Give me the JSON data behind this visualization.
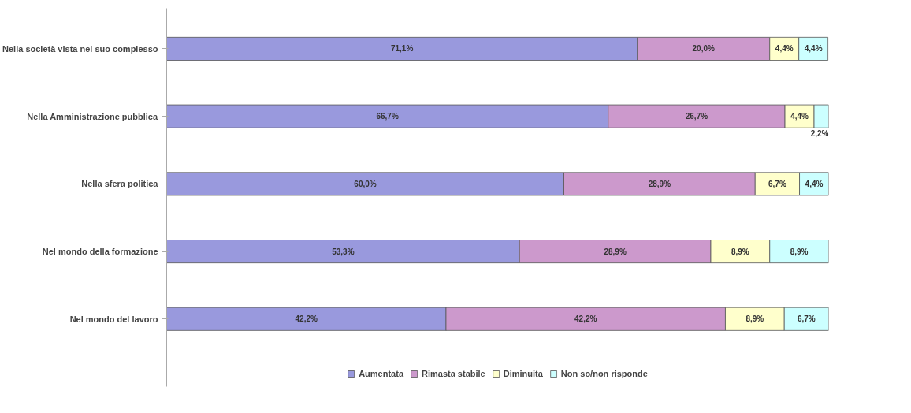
{
  "chart_data": {
    "type": "bar",
    "orientation": "horizontal",
    "stacked": true,
    "categories": [
      "Nella società vista nel suo complesso",
      "Nella Amministrazione pubblica",
      "Nella sfera politica",
      "Nel mondo della formazione",
      "Nel mondo del lavoro"
    ],
    "xlim": [
      0,
      100
    ],
    "tick_labels": "y",
    "grid": false,
    "legend": "bottom",
    "series": [
      {
        "name": "Aumentata",
        "color": "#9999dd",
        "values": [
          71.1,
          66.7,
          60.0,
          53.3,
          42.2
        ],
        "value_labels": [
          "71,1%",
          "66,7%",
          "60,0%",
          "53,3%",
          "42,2%"
        ]
      },
      {
        "name": "Rimasta stabile",
        "color": "#cc99cc",
        "values": [
          20.0,
          26.7,
          28.9,
          28.9,
          42.2
        ],
        "value_labels": [
          "20,0%",
          "26,7%",
          "28,9%",
          "28,9%",
          "42,2%"
        ]
      },
      {
        "name": "Diminuita",
        "color": "#ffffcc",
        "values": [
          4.4,
          4.4,
          6.7,
          8.9,
          8.9
        ],
        "value_labels": [
          "4,4%",
          "4,4%",
          "6,7%",
          "8,9%",
          "8,9%"
        ]
      },
      {
        "name": "Non so/non risponde",
        "color": "#ccffff",
        "values": [
          4.4,
          2.2,
          4.4,
          8.9,
          6.7
        ],
        "value_labels": [
          "4,4%",
          "2,2%",
          "4,4%",
          "8,9%",
          "6,7%"
        ]
      }
    ]
  }
}
